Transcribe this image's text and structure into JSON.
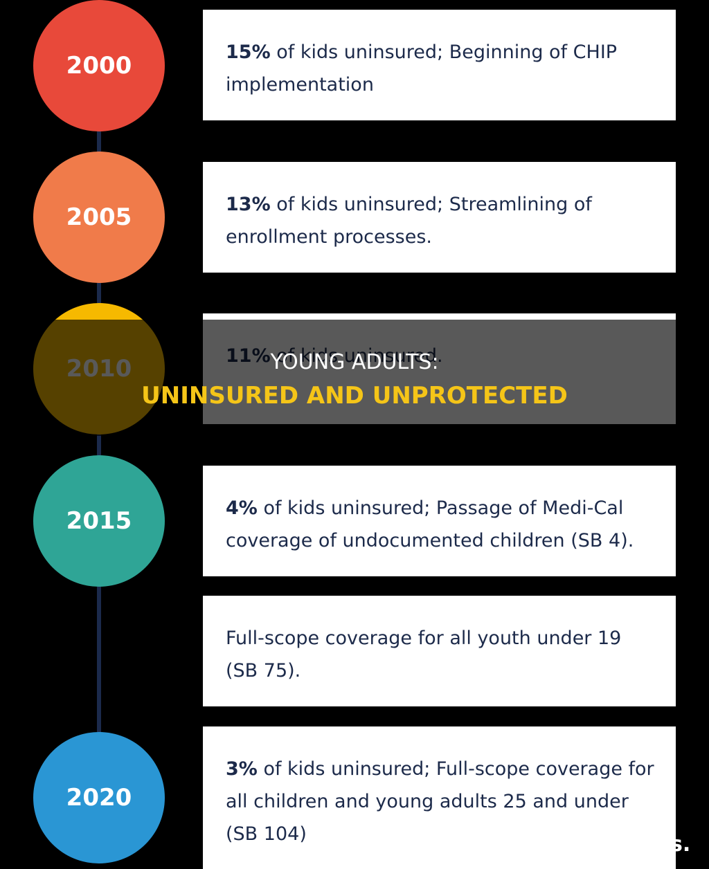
{
  "overlay": {
    "title": "YOUNG ADULTS:",
    "subtitle": "UNINSURED AND UNPROTECTED"
  },
  "corner_text": "s.",
  "items": [
    {
      "year": "2000",
      "color": "#e8493a",
      "lead": "15%",
      "text": "of kids uninsured; Beginning of CHIP implementation"
    },
    {
      "year": "2005",
      "color": "#f07b4a",
      "lead": "13%",
      "text": "of kids uninsured; Streamlining of enrollment processes."
    },
    {
      "year": "2010",
      "color": "#f6b900",
      "lead": "11%",
      "text": "of kids uninsured."
    },
    {
      "year": "2015",
      "color": "#2fa596",
      "lead": "4%",
      "text": "of kids uninsured; Passage of Medi-Cal coverage of undocumented children (SB 4)."
    },
    {
      "text": "Full-scope coverage for all youth under 19 (SB 75)."
    },
    {
      "year": "2020",
      "color": "#2a96d4",
      "lead": "3%",
      "text": "of kids uninsured; Full-scope coverage for all children and young adults 25 and under (SB 104)"
    }
  ]
}
